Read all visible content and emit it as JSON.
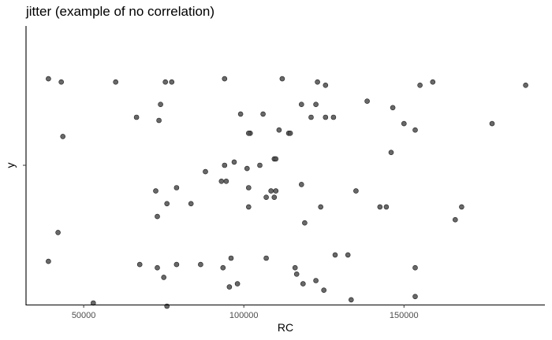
{
  "chart_data": {
    "type": "scatter",
    "title": "jitter (example of no correlation)",
    "xlabel": "RC",
    "ylabel": "y",
    "xlim": [
      32000,
      194000
    ],
    "ylim": [
      -0.435,
      0.435
    ],
    "x_ticks": [
      50000,
      100000,
      150000
    ],
    "x_tick_labels": [
      "50000",
      "100000",
      "150000"
    ],
    "y_ticks": [
      0
    ],
    "y_tick_labels": [
      ""
    ],
    "grid": false,
    "legend": "none",
    "point_color": "#4d4d4d",
    "points": [
      {
        "x": 39000,
        "y": 0.27
      },
      {
        "x": 43000,
        "y": 0.26
      },
      {
        "x": 60000,
        "y": 0.26
      },
      {
        "x": 75500,
        "y": 0.26
      },
      {
        "x": 77500,
        "y": 0.26
      },
      {
        "x": 94000,
        "y": 0.27
      },
      {
        "x": 112000,
        "y": 0.27
      },
      {
        "x": 123000,
        "y": 0.26
      },
      {
        "x": 125500,
        "y": 0.25
      },
      {
        "x": 155000,
        "y": 0.25
      },
      {
        "x": 159000,
        "y": 0.26
      },
      {
        "x": 188000,
        "y": 0.25
      },
      {
        "x": 43500,
        "y": 0.09
      },
      {
        "x": 66500,
        "y": 0.15
      },
      {
        "x": 74000,
        "y": 0.19
      },
      {
        "x": 73500,
        "y": 0.14
      },
      {
        "x": 99000,
        "y": 0.16
      },
      {
        "x": 102000,
        "y": 0.1
      },
      {
        "x": 101500,
        "y": 0.1
      },
      {
        "x": 106000,
        "y": 0.16
      },
      {
        "x": 111000,
        "y": 0.11
      },
      {
        "x": 114000,
        "y": 0.1
      },
      {
        "x": 114500,
        "y": 0.1
      },
      {
        "x": 118000,
        "y": 0.19
      },
      {
        "x": 121000,
        "y": 0.15
      },
      {
        "x": 122500,
        "y": 0.19
      },
      {
        "x": 125500,
        "y": 0.15
      },
      {
        "x": 128000,
        "y": 0.15
      },
      {
        "x": 138500,
        "y": 0.2
      },
      {
        "x": 146500,
        "y": 0.18
      },
      {
        "x": 150000,
        "y": 0.13
      },
      {
        "x": 153500,
        "y": 0.11
      },
      {
        "x": 177500,
        "y": 0.13
      },
      {
        "x": 88000,
        "y": -0.02
      },
      {
        "x": 93000,
        "y": -0.05
      },
      {
        "x": 94000,
        "y": 0.0
      },
      {
        "x": 94500,
        "y": -0.05
      },
      {
        "x": 97000,
        "y": 0.01
      },
      {
        "x": 101000,
        "y": -0.01
      },
      {
        "x": 105000,
        "y": 0.0
      },
      {
        "x": 109500,
        "y": 0.02
      },
      {
        "x": 110000,
        "y": 0.02
      },
      {
        "x": 146000,
        "y": 0.04
      },
      {
        "x": 79000,
        "y": -0.07
      },
      {
        "x": 73000,
        "y": -0.16
      },
      {
        "x": 72500,
        "y": -0.08
      },
      {
        "x": 76000,
        "y": -0.12
      },
      {
        "x": 83500,
        "y": -0.12
      },
      {
        "x": 101500,
        "y": -0.07
      },
      {
        "x": 101500,
        "y": -0.13
      },
      {
        "x": 107000,
        "y": -0.1
      },
      {
        "x": 108500,
        "y": -0.08
      },
      {
        "x": 109500,
        "y": -0.1
      },
      {
        "x": 110000,
        "y": -0.08
      },
      {
        "x": 118000,
        "y": -0.06
      },
      {
        "x": 119000,
        "y": -0.18
      },
      {
        "x": 124000,
        "y": -0.13
      },
      {
        "x": 135000,
        "y": -0.08
      },
      {
        "x": 142500,
        "y": -0.13
      },
      {
        "x": 144500,
        "y": -0.13
      },
      {
        "x": 166000,
        "y": -0.17
      },
      {
        "x": 168000,
        "y": -0.13
      },
      {
        "x": 42000,
        "y": -0.21
      },
      {
        "x": 39000,
        "y": -0.3
      },
      {
        "x": 53000,
        "y": -0.43
      },
      {
        "x": 67500,
        "y": -0.31
      },
      {
        "x": 73000,
        "y": -0.32
      },
      {
        "x": 75000,
        "y": -0.35
      },
      {
        "x": 76000,
        "y": -0.44
      },
      {
        "x": 79000,
        "y": -0.31
      },
      {
        "x": 86500,
        "y": -0.31
      },
      {
        "x": 93500,
        "y": -0.32
      },
      {
        "x": 96000,
        "y": -0.29
      },
      {
        "x": 95500,
        "y": -0.38
      },
      {
        "x": 98000,
        "y": -0.37
      },
      {
        "x": 107000,
        "y": -0.29
      },
      {
        "x": 116000,
        "y": -0.32
      },
      {
        "x": 116500,
        "y": -0.34
      },
      {
        "x": 118500,
        "y": -0.37
      },
      {
        "x": 122500,
        "y": -0.36
      },
      {
        "x": 125000,
        "y": -0.39
      },
      {
        "x": 128500,
        "y": -0.28
      },
      {
        "x": 132500,
        "y": -0.28
      },
      {
        "x": 133500,
        "y": -0.42
      },
      {
        "x": 153500,
        "y": -0.32
      },
      {
        "x": 153500,
        "y": -0.41
      }
    ]
  }
}
